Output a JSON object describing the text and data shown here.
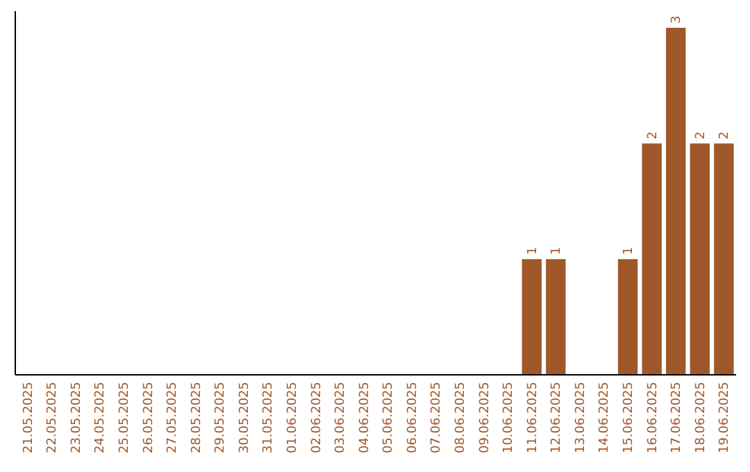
{
  "chart_data": {
    "type": "bar",
    "categories": [
      "21.05.2025",
      "22.05.2025",
      "23.05.2025",
      "24.05.2025",
      "25.05.2025",
      "26.05.2025",
      "27.05.2025",
      "28.05.2025",
      "29.05.2025",
      "30.05.2025",
      "31.05.2025",
      "01.06.2025",
      "02.06.2025",
      "03.06.2025",
      "04.06.2025",
      "05.06.2025",
      "06.06.2025",
      "07.06.2025",
      "08.06.2025",
      "09.06.2025",
      "10.06.2025",
      "11.06.2025",
      "12.06.2025",
      "13.06.2025",
      "14.06.2025",
      "15.06.2025",
      "16.06.2025",
      "17.06.2025",
      "18.06.2025",
      "19.06.2025"
    ],
    "values": [
      null,
      null,
      null,
      null,
      null,
      null,
      null,
      null,
      null,
      null,
      null,
      null,
      null,
      null,
      null,
      null,
      null,
      null,
      null,
      null,
      null,
      1,
      1,
      null,
      null,
      1,
      2,
      3,
      2,
      2
    ],
    "data_labels": true,
    "color": "#a0582a"
  }
}
